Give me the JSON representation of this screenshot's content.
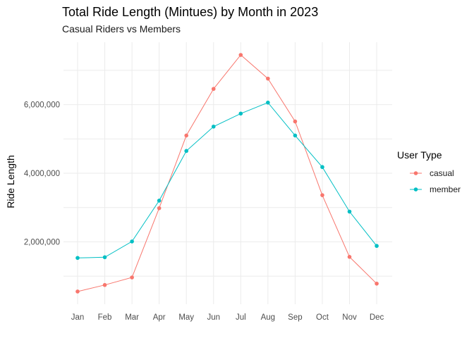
{
  "chart_data": {
    "type": "line",
    "title": "Total Ride Length (Mintues) by Month in 2023",
    "subtitle": "Casual Riders vs Members",
    "xlabel": "",
    "ylabel": "Ride Length",
    "categories": [
      "Jan",
      "Feb",
      "Mar",
      "Apr",
      "May",
      "Jun",
      "Jul",
      "Aug",
      "Sep",
      "Oct",
      "Nov",
      "Dec"
    ],
    "series": [
      {
        "name": "casual",
        "color": "#F8766D",
        "values": [
          550000,
          740000,
          960000,
          2980000,
          5100000,
          6460000,
          7450000,
          6760000,
          5510000,
          3360000,
          1560000,
          780000
        ]
      },
      {
        "name": "member",
        "color": "#00BFC4",
        "values": [
          1530000,
          1550000,
          2010000,
          3200000,
          4650000,
          5360000,
          5740000,
          6060000,
          5100000,
          4180000,
          2880000,
          1880000
        ]
      }
    ],
    "yticks": [
      2000000,
      4000000,
      6000000
    ],
    "ytick_labels": [
      "2,000,000",
      "4,000,000",
      "6,000,000"
    ],
    "ylim": [
      180000,
      7820000
    ],
    "grid": true,
    "legend": {
      "title": "User Type",
      "position": "right"
    }
  }
}
